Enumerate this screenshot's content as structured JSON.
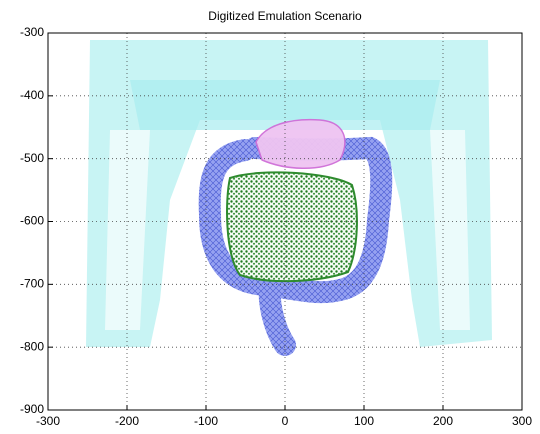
{
  "chart_data": {
    "type": "mesh",
    "title": "Digitized Emulation Scenario",
    "xlim": [
      -300,
      300
    ],
    "xticks": [
      -300,
      -200,
      -100,
      0,
      100,
      200,
      300
    ],
    "ylim": [
      -900,
      -300
    ],
    "yticks": [
      -300,
      -400,
      -500,
      -600,
      -700,
      -800,
      -900
    ],
    "grid": true
  }
}
